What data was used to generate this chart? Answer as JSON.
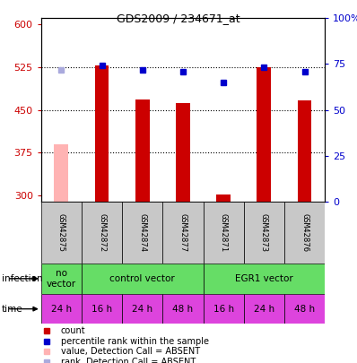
{
  "title": "GDS2009 / 234671_at",
  "samples": [
    "GSM42875",
    "GSM42872",
    "GSM42874",
    "GSM42877",
    "GSM42871",
    "GSM42873",
    "GSM42876"
  ],
  "count_values": [
    390,
    527,
    468,
    462,
    302,
    524,
    467
  ],
  "rank_values": [
    72,
    74,
    72,
    71,
    65,
    73,
    71
  ],
  "absent_flags": [
    true,
    false,
    false,
    false,
    false,
    false,
    false
  ],
  "rank_absent_flags": [
    true,
    false,
    false,
    false,
    false,
    false,
    false
  ],
  "time_labels": [
    "24 h",
    "16 h",
    "24 h",
    "48 h",
    "16 h",
    "24 h",
    "48 h"
  ],
  "ylim_left": [
    290,
    610
  ],
  "ylim_right": [
    0,
    100
  ],
  "yticks_left": [
    300,
    375,
    450,
    525,
    600
  ],
  "yticks_right": [
    0,
    25,
    50,
    75,
    100
  ],
  "grid_values": [
    375,
    450,
    525
  ],
  "bar_color_present": "#cc0000",
  "bar_color_absent": "#ffb3b3",
  "rank_color_present": "#0000cc",
  "rank_color_absent": "#aaaadd",
  "sample_bg_color": "#c8c8c8",
  "infection_green": "#66dd66",
  "time_bg_color": "#dd44dd",
  "legend_items": [
    {
      "color": "#cc0000",
      "label": "count"
    },
    {
      "color": "#0000cc",
      "label": "percentile rank within the sample"
    },
    {
      "color": "#ffb3b3",
      "label": "value, Detection Call = ABSENT"
    },
    {
      "color": "#aaaadd",
      "label": "rank, Detection Call = ABSENT"
    }
  ]
}
